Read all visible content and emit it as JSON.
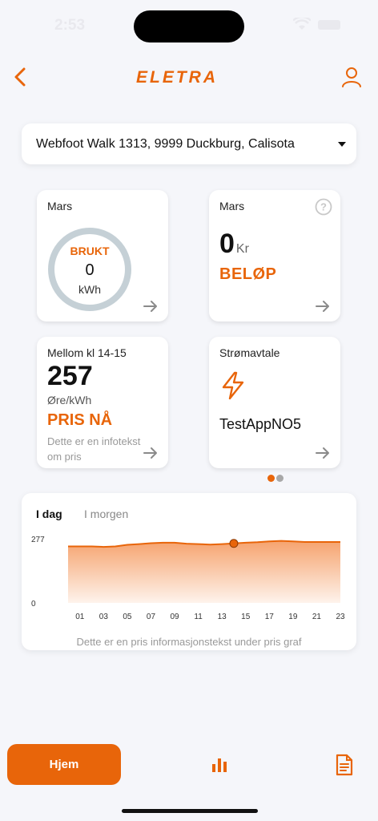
{
  "status_bar": {
    "time": "2:53"
  },
  "header": {
    "logo_text": "ELETRA",
    "back_icon": "chevron-left-icon",
    "profile_icon": "user-icon"
  },
  "address": {
    "selected": "Webfoot Walk 1313, 9999 Duckburg, Calisota"
  },
  "cards": {
    "usage": {
      "period": "Mars",
      "title": "BRUKT",
      "value": "0",
      "unit": "kWh"
    },
    "amount": {
      "period": "Mars",
      "value": "0",
      "unit": "Kr",
      "title": "BELØP"
    },
    "price": {
      "period": "Mellom kl 14-15",
      "value": "257",
      "unit": "Øre/kWh",
      "title": "PRIS NÅ",
      "info": "Dette er en infotekst om pris"
    },
    "contract": {
      "title": "Strømavtale",
      "name": "TestAppNO5"
    }
  },
  "pager": {
    "active_index": 0,
    "count": 2
  },
  "price_chart": {
    "tabs": [
      "I dag",
      "I morgen"
    ],
    "active_tab": "I dag",
    "info_text": "Dette er en pris informasjonstekst under pris graf"
  },
  "chart_data": {
    "type": "area",
    "x_tick_labels": [
      "01",
      "03",
      "05",
      "07",
      "09",
      "11",
      "13",
      "15",
      "17",
      "19",
      "21",
      "23"
    ],
    "y_tick_labels": [
      "0",
      "277"
    ],
    "ylim": [
      0,
      277
    ],
    "x": [
      0,
      1,
      2,
      3,
      4,
      5,
      6,
      7,
      8,
      9,
      10,
      11,
      12,
      13,
      14,
      15,
      16,
      17,
      18,
      19,
      20,
      21,
      22,
      23
    ],
    "values": [
      244,
      244,
      244,
      242,
      244,
      251,
      254,
      258,
      260,
      260,
      256,
      254,
      252,
      254,
      257,
      260,
      262,
      266,
      268,
      266,
      263,
      263,
      263,
      263
    ],
    "highlight_hour": 14,
    "colors": {
      "line": "#e8650a",
      "fill_top": "#f6a36e",
      "fill_bottom": "#fef3ec",
      "marker": "#e8650a"
    }
  },
  "bottom_nav": {
    "home_label": "Hjem",
    "stats_icon": "bar-chart-icon",
    "document_icon": "document-icon"
  },
  "colors": {
    "accent": "#e8650a",
    "background": "#f5f6fa",
    "ring": "#c5d0d6"
  }
}
